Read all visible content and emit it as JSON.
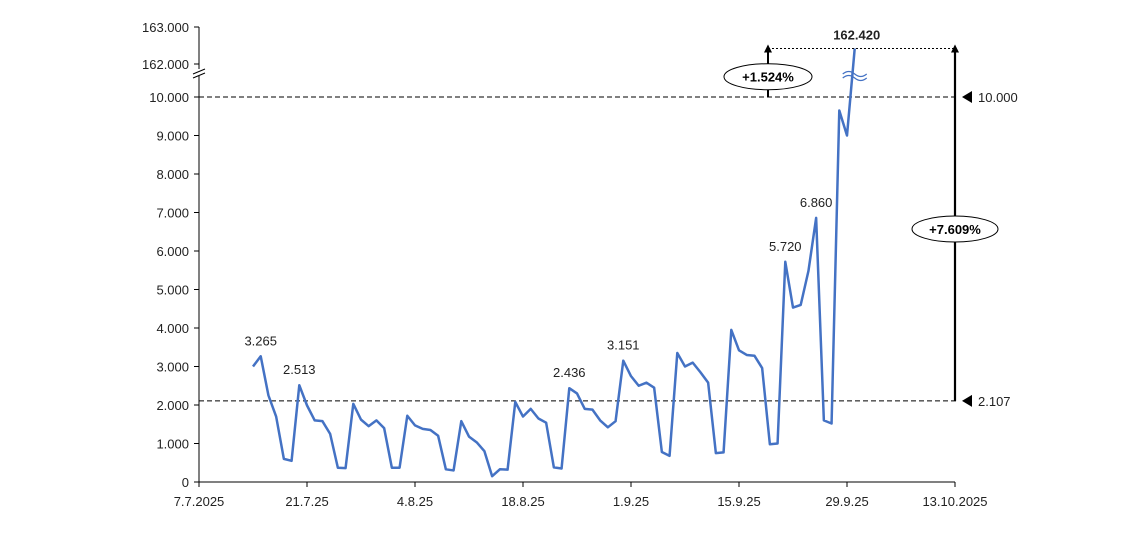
{
  "chart_data": {
    "type": "line",
    "title": "",
    "xlabel": "",
    "ylabel": "",
    "x_axis": {
      "type": "date",
      "range": [
        "2025-07-07",
        "2025-10-13"
      ],
      "tick_dates": [
        "2025-07-07",
        "2025-07-21",
        "2025-08-04",
        "2025-08-18",
        "2025-09-01",
        "2025-09-15",
        "2025-09-29",
        "2025-10-13"
      ],
      "tick_labels": [
        "7.7.2025",
        "21.7.25",
        "4.8.25",
        "18.8.25",
        "1.9.25",
        "15.9.25",
        "29.9.25",
        "13.10.2025"
      ]
    },
    "y_axis": {
      "type": "broken",
      "lower_range": [
        0,
        10000
      ],
      "lower_ticks": [
        0,
        1000,
        2000,
        3000,
        4000,
        5000,
        6000,
        7000,
        8000,
        9000,
        10000
      ],
      "lower_tick_labels": [
        "0",
        "1.000",
        "2.000",
        "3.000",
        "4.000",
        "5.000",
        "6.000",
        "7.000",
        "8.000",
        "9.000",
        "10.000"
      ],
      "upper_ticks": [
        162000,
        163000
      ],
      "upper_tick_labels": [
        "162.000",
        "163.000"
      ]
    },
    "grid": false,
    "legend": "none",
    "series": [
      {
        "color": "#4472C4",
        "points": [
          [
            "2025-07-14",
            3000
          ],
          [
            "2025-07-15",
            3265
          ],
          [
            "2025-07-16",
            2250
          ],
          [
            "2025-07-17",
            1700
          ],
          [
            "2025-07-18",
            600
          ],
          [
            "2025-07-19",
            550
          ],
          [
            "2025-07-20",
            2513
          ],
          [
            "2025-07-21",
            1990
          ],
          [
            "2025-07-22",
            1600
          ],
          [
            "2025-07-23",
            1580
          ],
          [
            "2025-07-24",
            1250
          ],
          [
            "2025-07-25",
            370
          ],
          [
            "2025-07-26",
            360
          ],
          [
            "2025-07-27",
            2030
          ],
          [
            "2025-07-28",
            1620
          ],
          [
            "2025-07-29",
            1450
          ],
          [
            "2025-07-30",
            1600
          ],
          [
            "2025-07-31",
            1400
          ],
          [
            "2025-08-01",
            370
          ],
          [
            "2025-08-02",
            370
          ],
          [
            "2025-08-03",
            1720
          ],
          [
            "2025-08-04",
            1470
          ],
          [
            "2025-08-05",
            1380
          ],
          [
            "2025-08-06",
            1350
          ],
          [
            "2025-08-07",
            1200
          ],
          [
            "2025-08-08",
            330
          ],
          [
            "2025-08-09",
            300
          ],
          [
            "2025-08-10",
            1580
          ],
          [
            "2025-08-11",
            1180
          ],
          [
            "2025-08-12",
            1030
          ],
          [
            "2025-08-13",
            800
          ],
          [
            "2025-08-14",
            150
          ],
          [
            "2025-08-15",
            330
          ],
          [
            "2025-08-16",
            320
          ],
          [
            "2025-08-17",
            2080
          ],
          [
            "2025-08-18",
            1700
          ],
          [
            "2025-08-19",
            1900
          ],
          [
            "2025-08-20",
            1650
          ],
          [
            "2025-08-21",
            1540
          ],
          [
            "2025-08-22",
            380
          ],
          [
            "2025-08-23",
            350
          ],
          [
            "2025-08-24",
            2436
          ],
          [
            "2025-08-25",
            2300
          ],
          [
            "2025-08-26",
            1900
          ],
          [
            "2025-08-27",
            1880
          ],
          [
            "2025-08-28",
            1600
          ],
          [
            "2025-08-29",
            1420
          ],
          [
            "2025-08-30",
            1580
          ],
          [
            "2025-08-31",
            3151
          ],
          [
            "2025-09-01",
            2750
          ],
          [
            "2025-09-02",
            2500
          ],
          [
            "2025-09-03",
            2580
          ],
          [
            "2025-09-04",
            2450
          ],
          [
            "2025-09-05",
            780
          ],
          [
            "2025-09-06",
            680
          ],
          [
            "2025-09-07",
            3350
          ],
          [
            "2025-09-08",
            3000
          ],
          [
            "2025-09-09",
            3100
          ],
          [
            "2025-09-10",
            2850
          ],
          [
            "2025-09-11",
            2580
          ],
          [
            "2025-09-12",
            750
          ],
          [
            "2025-09-13",
            770
          ],
          [
            "2025-09-14",
            3950
          ],
          [
            "2025-09-15",
            3420
          ],
          [
            "2025-09-16",
            3300
          ],
          [
            "2025-09-17",
            3280
          ],
          [
            "2025-09-18",
            2960
          ],
          [
            "2025-09-19",
            980
          ],
          [
            "2025-09-20",
            1000
          ],
          [
            "2025-09-21",
            5720
          ],
          [
            "2025-09-22",
            4530
          ],
          [
            "2025-09-23",
            4600
          ],
          [
            "2025-09-24",
            5480
          ],
          [
            "2025-09-25",
            6860
          ],
          [
            "2025-09-26",
            1600
          ],
          [
            "2025-09-27",
            1520
          ],
          [
            "2025-09-28",
            9650
          ],
          [
            "2025-09-29",
            9000
          ],
          [
            "2025-09-30",
            162420
          ]
        ]
      }
    ],
    "data_labels": [
      {
        "date": "2025-07-15",
        "value": 3265,
        "text": "3.265"
      },
      {
        "date": "2025-07-20",
        "value": 2513,
        "text": "2.513"
      },
      {
        "date": "2025-08-24",
        "value": 2436,
        "text": "2.436"
      },
      {
        "date": "2025-08-31",
        "value": 3151,
        "text": "3.151"
      },
      {
        "date": "2025-09-21",
        "value": 5720,
        "text": "5.720"
      },
      {
        "date": "2025-09-25",
        "value": 6860,
        "text": "6.860"
      },
      {
        "date": "2025-09-30",
        "value": 162420,
        "text": "162.420"
      }
    ],
    "reference_lines": [
      {
        "value": 10000,
        "label": "10.000"
      },
      {
        "value": 2107,
        "label": "2.107"
      }
    ],
    "annotations": [
      {
        "from": 10000,
        "to": 162420,
        "text": "+1.524%"
      },
      {
        "from": 2107,
        "to": 162420,
        "text": "+7.609%"
      }
    ]
  }
}
